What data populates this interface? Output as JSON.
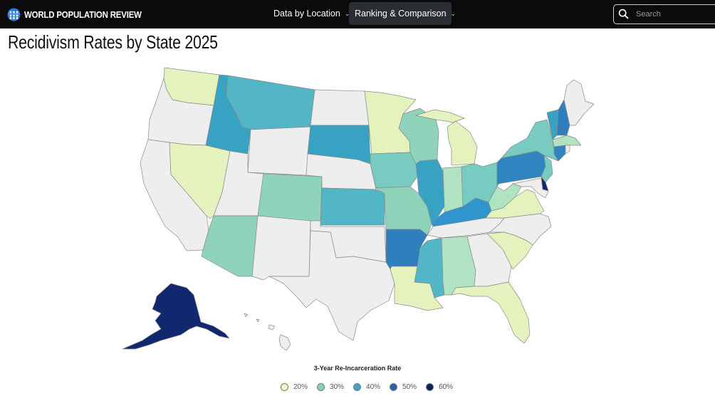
{
  "header": {
    "logo_text": "WORLD POPULATION REVIEW",
    "nav": [
      {
        "label": "Data by Location"
      },
      {
        "label": "Ranking & Comparison"
      }
    ],
    "search_placeholder": "Search"
  },
  "page_title": "Recidivism Rates by State 2025",
  "legend": {
    "title": "3-Year Re-Incarceration Rate",
    "items": [
      {
        "label": "20%",
        "color": "#f2fbcc"
      },
      {
        "label": "30%",
        "color": "#88d3b8"
      },
      {
        "label": "40%",
        "color": "#3ca8c4"
      },
      {
        "label": "50%",
        "color": "#2564a8"
      },
      {
        "label": "60%",
        "color": "#0f1f5c"
      }
    ]
  },
  "colors": {
    "header_bg": "#0b0b0b",
    "active_nav_bg": "#2a2d33",
    "no_data": "#eeeeee",
    "pale_yellow": "#e4f3be",
    "mint": "#8ed3ba",
    "teal": "#52b6c6",
    "teal_dark": "#38a2c2",
    "blue": "#2f85bf",
    "navy": "#12286e"
  }
}
